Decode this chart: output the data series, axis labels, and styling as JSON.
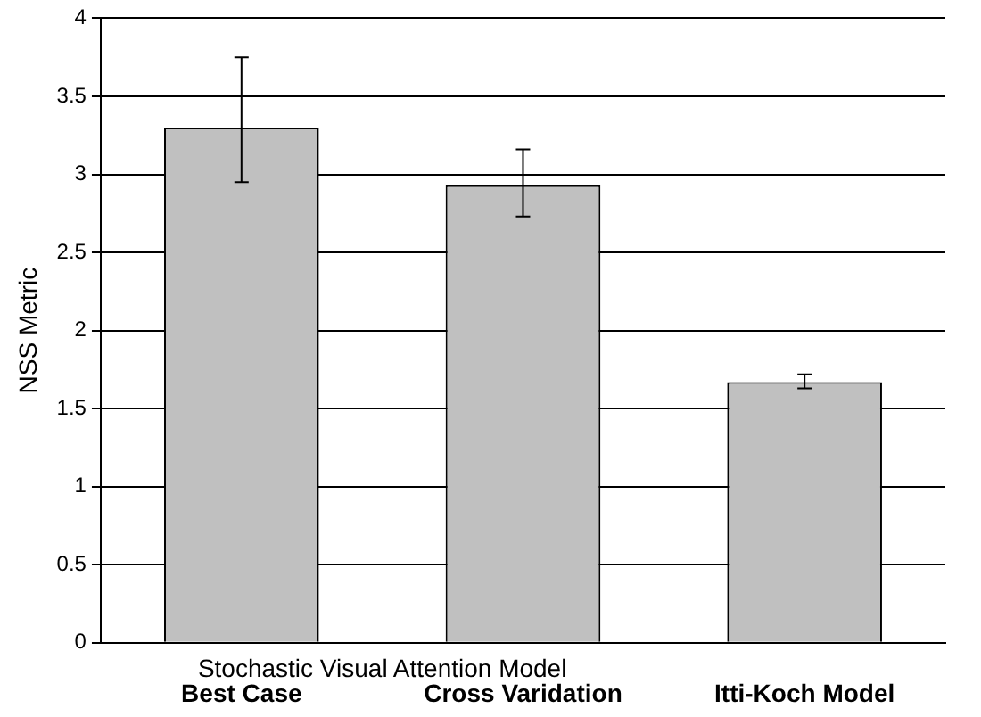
{
  "chart_data": {
    "type": "bar",
    "ylabel": "NSS Metric",
    "categories": [
      "Best Case",
      "Cross Varidation",
      "Itti-Koch Model"
    ],
    "values": [
      3.3,
      2.93,
      1.67
    ],
    "color": "#c0c0c0",
    "errors": [
      [
        2.95,
        3.75
      ],
      [
        2.73,
        3.16
      ],
      [
        1.63,
        1.72
      ]
    ],
    "ylim": [
      0,
      4
    ],
    "yticks": [
      0,
      0.5,
      1,
      1.5,
      2,
      2.5,
      3,
      3.5,
      4
    ],
    "grid": "y",
    "annotations": [
      "Stochastic Visual Attention Model"
    ]
  }
}
